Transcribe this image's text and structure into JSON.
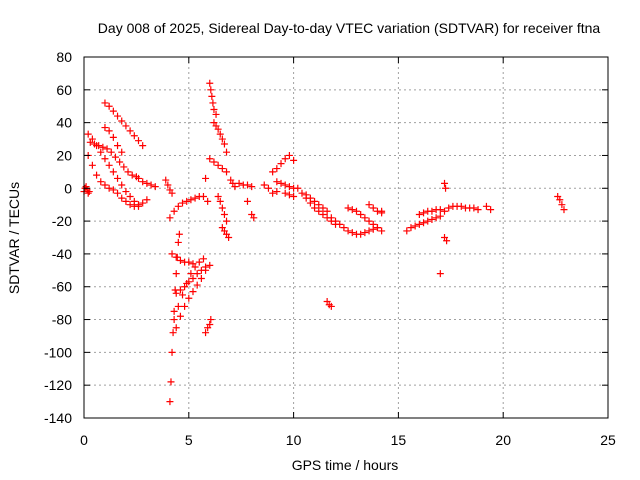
{
  "chart_data": {
    "type": "scatter",
    "title": "Day 008 of 2025, Sidereal Day-to-day VTEC variation (SDTVAR) for receiver ftna",
    "xlabel": "GPS time / hours",
    "ylabel": "SDTVAR / TECUs",
    "xlim": [
      0,
      25
    ],
    "ylim": [
      -140,
      80
    ],
    "xticks": [
      0,
      5,
      10,
      15,
      20,
      25
    ],
    "xtick_labels": [
      "0",
      "5",
      "10",
      "15",
      "20",
      "25"
    ],
    "yticks": [
      80,
      60,
      40,
      20,
      0,
      -20,
      -40,
      -60,
      -80,
      -100,
      -120,
      -140
    ],
    "ytick_labels": [
      "80",
      "60",
      "40",
      "20",
      "0",
      "-20",
      "-40",
      "-60",
      "-80",
      "-100",
      "-120",
      "-140"
    ],
    "grid": true,
    "marker": "plus",
    "color": "#ff0000",
    "series": [
      {
        "name": "sdtvar",
        "tracks": [
          {
            "x": [
              0.0,
              0.05,
              0.1,
              0.15,
              0.2,
              0.25
            ],
            "y": [
              -2,
              0,
              1,
              -1,
              -3,
              -2
            ]
          },
          {
            "x": [
              0.2,
              0.4,
              0.6,
              0.8,
              1.0,
              1.2,
              1.4,
              1.6,
              1.8,
              2.0,
              2.2,
              2.4,
              2.6,
              2.8,
              3.0
            ],
            "y": [
              33,
              30,
              26,
              22,
              18,
              14,
              10,
              6,
              2,
              -2,
              -5,
              -8,
              -10,
              -9,
              -7
            ]
          },
          {
            "x": [
              0.2,
              0.4,
              0.6,
              0.8,
              1.0,
              1.2,
              1.4,
              1.6,
              1.8,
              2.0,
              2.2,
              2.4,
              2.6
            ],
            "y": [
              20,
              14,
              8,
              4,
              2,
              0,
              -1,
              -3,
              -6,
              -8,
              -10,
              -11,
              -11
            ]
          },
          {
            "x": [
              0.3,
              0.5,
              0.7,
              0.9,
              1.1,
              1.3,
              1.5,
              1.7,
              1.9,
              2.1,
              2.3,
              2.5
            ],
            "y": [
              28,
              27,
              26,
              25,
              24,
              22,
              19,
              16,
              13,
              10,
              8,
              7
            ]
          },
          {
            "x": [
              1.0,
              1.2,
              1.4,
              1.6,
              1.8,
              2.0,
              2.2,
              2.4,
              2.6,
              2.8
            ],
            "y": [
              52,
              50,
              47,
              44,
              41,
              38,
              35,
              32,
              29,
              26
            ]
          },
          {
            "x": [
              1.0,
              1.2,
              1.4,
              1.6,
              1.8
            ],
            "y": [
              37,
              35,
              31,
              26,
              22
            ]
          },
          {
            "x": [
              2.6,
              2.8,
              3.0,
              3.2,
              3.4
            ],
            "y": [
              6,
              4,
              3,
              2,
              1
            ]
          },
          {
            "x": [
              3.9,
              4.0,
              4.1,
              4.2
            ],
            "y": [
              5,
              2,
              -1,
              -3
            ]
          },
          {
            "x": [
              4.1,
              4.3,
              4.5,
              4.7,
              4.9,
              5.1,
              5.3,
              5.5,
              5.7,
              5.9
            ],
            "y": [
              -18,
              -14,
              -11,
              -9,
              -8,
              -7,
              -6,
              -5,
              -5,
              -8
            ]
          },
          {
            "x": [
              4.1,
              4.15,
              4.2,
              4.25,
              4.3,
              4.35,
              4.4,
              4.45,
              4.5,
              4.55
            ],
            "y": [
              -130,
              -118,
              -100,
              -88,
              -75,
              -62,
              -52,
              -42,
              -33,
              -28
            ]
          },
          {
            "x": [
              4.3,
              4.5,
              4.7,
              4.9,
              5.1,
              5.3,
              5.5,
              5.7
            ],
            "y": [
              -80,
              -72,
              -65,
              -58,
              -52,
              -48,
              -45,
              -43
            ]
          },
          {
            "x": [
              4.4,
              4.6,
              4.8,
              5.0,
              5.2,
              5.4,
              5.6,
              5.8,
              6.0
            ],
            "y": [
              -85,
              -78,
              -72,
              -67,
              -63,
              -59,
              -55,
              -50,
              -47
            ]
          },
          {
            "x": [
              4.2,
              4.4,
              4.6,
              4.8,
              5.0,
              5.2
            ],
            "y": [
              -40,
              -42,
              -44,
              -45,
              -45,
              -46
            ]
          },
          {
            "x": [
              4.4,
              4.6,
              4.8,
              5.0,
              5.2,
              5.4,
              5.6,
              5.8
            ],
            "y": [
              -64,
              -62,
              -60,
              -57,
              -55,
              -52,
              -50,
              -48
            ]
          },
          {
            "x": [
              5.8,
              5.9,
              6.0,
              6.05
            ],
            "y": [
              -88,
              -85,
              -83,
              -80
            ]
          },
          {
            "x": [
              5.8
            ],
            "y": [
              6
            ]
          },
          {
            "x": [
              6.0,
              6.05,
              6.1,
              6.15,
              6.2,
              6.3
            ],
            "y": [
              64,
              60,
              56,
              52,
              48,
              45
            ]
          },
          {
            "x": [
              6.2,
              6.3,
              6.4,
              6.5,
              6.6,
              6.7,
              6.8
            ],
            "y": [
              40,
              38,
              36,
              33,
              30,
              27,
              22
            ]
          },
          {
            "x": [
              6.0,
              6.2,
              6.4,
              6.6,
              6.8
            ],
            "y": [
              18,
              16,
              14,
              12,
              10
            ]
          },
          {
            "x": [
              6.4,
              6.5,
              6.6,
              6.7,
              6.8
            ],
            "y": [
              -5,
              -8,
              -12,
              -16,
              -20
            ]
          },
          {
            "x": [
              6.6,
              6.7,
              6.8,
              6.9
            ],
            "y": [
              -24,
              -26,
              -28,
              -30
            ]
          },
          {
            "x": [
              7.0,
              7.1,
              7.2
            ],
            "y": [
              5,
              3,
              1
            ]
          },
          {
            "x": [
              7.4,
              7.6,
              7.8,
              8.0
            ],
            "y": [
              3,
              2,
              2,
              1
            ]
          },
          {
            "x": [
              7.8
            ],
            "y": [
              -8
            ]
          },
          {
            "x": [
              8.0,
              8.1
            ],
            "y": [
              -16,
              -18
            ]
          },
          {
            "x": [
              8.6,
              8.8,
              9.0,
              9.2
            ],
            "y": [
              2,
              0,
              -3,
              -2
            ]
          },
          {
            "x": [
              9.0,
              9.2,
              9.4,
              9.6,
              9.8,
              10.0
            ],
            "y": [
              10,
              12,
              15,
              18,
              20,
              17
            ]
          },
          {
            "x": [
              9.2,
              9.4,
              9.6,
              9.8,
              10.0
            ],
            "y": [
              4,
              3,
              2,
              1,
              0
            ]
          },
          {
            "x": [
              9.6,
              9.8,
              10.0
            ],
            "y": [
              -3,
              -4,
              -5
            ]
          },
          {
            "x": [
              10.2,
              10.4,
              10.6,
              10.8,
              11.0,
              11.2,
              11.4,
              11.6,
              11.8,
              12.0
            ],
            "y": [
              0,
              -3,
              -6,
              -9,
              -12,
              -14,
              -16,
              -18,
              -20,
              -22
            ]
          },
          {
            "x": [
              10.6,
              10.8,
              11.0,
              11.2,
              11.4,
              11.6
            ],
            "y": [
              -4,
              -6,
              -8,
              -10,
              -12,
              -14
            ]
          },
          {
            "x": [
              11.6,
              11.7,
              11.8
            ],
            "y": [
              -69,
              -71,
              -72
            ]
          },
          {
            "x": [
              11.8,
              12.0,
              12.2,
              12.4,
              12.6,
              12.8,
              13.0,
              13.2,
              13.4,
              13.6,
              13.8,
              14.0
            ],
            "y": [
              -18,
              -20,
              -22,
              -24,
              -26,
              -27,
              -28,
              -28,
              -27,
              -26,
              -25,
              -24
            ]
          },
          {
            "x": [
              12.6,
              12.8,
              13.0,
              13.2,
              13.4,
              13.6,
              13.8,
              14.0,
              14.2
            ],
            "y": [
              -12,
              -13,
              -14,
              -16,
              -18,
              -20,
              -22,
              -24,
              -26
            ]
          },
          {
            "x": [
              13.6,
              13.8,
              14.0,
              14.2
            ],
            "y": [
              -10,
              -12,
              -14,
              -15
            ]
          },
          {
            "x": [
              14.2
            ],
            "y": [
              -14
            ]
          },
          {
            "x": [
              15.4,
              15.6,
              15.8,
              16.0,
              16.2,
              16.4,
              16.6,
              16.8,
              17.0
            ],
            "y": [
              -26,
              -24,
              -23,
              -22,
              -21,
              -20,
              -19,
              -18,
              -17
            ]
          },
          {
            "x": [
              16.0,
              16.2,
              16.4,
              16.6,
              16.8,
              17.0
            ],
            "y": [
              -16,
              -15,
              -14,
              -14,
              -13,
              -13
            ]
          },
          {
            "x": [
              17.0
            ],
            "y": [
              -52
            ]
          },
          {
            "x": [
              17.2,
              17.3
            ],
            "y": [
              -30,
              -32
            ]
          },
          {
            "x": [
              17.2,
              17.25
            ],
            "y": [
              3,
              0
            ]
          },
          {
            "x": [
              17.2,
              17.4,
              17.6,
              17.8,
              18.0,
              18.2,
              18.4,
              18.6,
              18.8
            ],
            "y": [
              -14,
              -12,
              -11,
              -11,
              -11,
              -12,
              -12,
              -12,
              -13
            ]
          },
          {
            "x": [
              19.2,
              19.4
            ],
            "y": [
              -11,
              -13
            ]
          },
          {
            "x": [
              22.6,
              22.7,
              22.8,
              22.9
            ],
            "y": [
              -5,
              -7,
              -10,
              -13
            ]
          }
        ]
      }
    ]
  }
}
